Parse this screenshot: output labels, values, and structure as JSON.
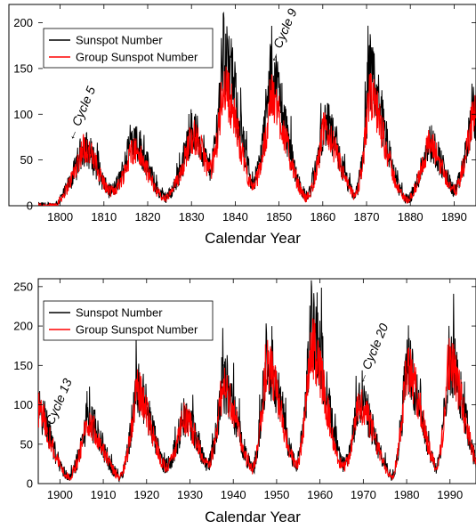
{
  "chart_data": [
    {
      "type": "line",
      "xlabel": "Calendar Year",
      "xlim": [
        1795,
        1895
      ],
      "ylim": [
        0,
        220
      ],
      "xticks": [
        1800,
        1810,
        1820,
        1830,
        1840,
        1850,
        1860,
        1870,
        1880,
        1890
      ],
      "yticks": [
        0,
        50,
        100,
        150,
        200
      ],
      "legend_position": "top-left",
      "colors": {
        "sunspot": "#000000",
        "group": "#ff0000"
      },
      "series": [
        {
          "name": "Sunspot Number",
          "color": "#000000"
        },
        {
          "name": "Group Sunspot Number",
          "color": "#ff0000"
        }
      ],
      "cycles": [
        {
          "year": 1805.2,
          "min": 1798.3,
          "max_year": 1805.2,
          "sunspot_peak": 82,
          "group_peak": 82
        },
        {
          "year": 1816.4,
          "min": 1810.6,
          "max_year": 1816.4,
          "sunspot_peak": 95,
          "group_peak": 80
        },
        {
          "year": 1829.9,
          "min": 1823.3,
          "max_year": 1829.9,
          "sunspot_peak": 105,
          "group_peak": 98
        },
        {
          "year": 1837.2,
          "min": 1833.9,
          "max_year": 1837.2,
          "sunspot_peak": 205,
          "group_peak": 160
        },
        {
          "year": 1848.1,
          "min": 1843.5,
          "max_year": 1848.1,
          "sunspot_peak": 180,
          "group_peak": 150
        },
        {
          "year": 1860.1,
          "min": 1856.0,
          "max_year": 1860.1,
          "sunspot_peak": 115,
          "group_peak": 105
        },
        {
          "year": 1870.6,
          "min": 1867.2,
          "max_year": 1870.6,
          "sunspot_peak": 175,
          "group_peak": 150
        },
        {
          "year": 1883.9,
          "min": 1878.9,
          "max_year": 1883.9,
          "sunspot_peak": 90,
          "group_peak": 85
        },
        {
          "year": 1894.1,
          "min": 1889.6,
          "max_year": 1894.1,
          "sunspot_peak": 130,
          "group_peak": 125
        }
      ],
      "annotations": [
        {
          "text": "← Cycle 5",
          "x": 1803,
          "y": 70
        },
        {
          "text": "← Cycle 9",
          "x": 1849,
          "y": 155
        }
      ]
    },
    {
      "type": "line",
      "xlabel": "Calendar Year",
      "xlim": [
        1895,
        1996
      ],
      "ylim": [
        0,
        260
      ],
      "xticks": [
        1900,
        1910,
        1920,
        1930,
        1940,
        1950,
        1960,
        1970,
        1980,
        1990
      ],
      "yticks": [
        0,
        50,
        100,
        150,
        200,
        250
      ],
      "legend_position": "top-left",
      "colors": {
        "sunspot": "#000000",
        "group": "#ff0000"
      },
      "series": [
        {
          "name": "Sunspot Number",
          "color": "#000000"
        },
        {
          "name": "Group Sunspot Number",
          "color": "#ff0000"
        }
      ],
      "cycles": [
        {
          "year": 1894.1,
          "min": 1889.6,
          "max_year": 1894.1,
          "sunspot_peak": 130,
          "group_peak": 125
        },
        {
          "year": 1906.2,
          "min": 1901.7,
          "max_year": 1906.2,
          "sunspot_peak": 105,
          "group_peak": 100
        },
        {
          "year": 1917.6,
          "min": 1913.6,
          "max_year": 1917.6,
          "sunspot_peak": 155,
          "group_peak": 150
        },
        {
          "year": 1928.4,
          "min": 1923.6,
          "max_year": 1928.4,
          "sunspot_peak": 110,
          "group_peak": 105
        },
        {
          "year": 1937.4,
          "min": 1933.8,
          "max_year": 1937.4,
          "sunspot_peak": 160,
          "group_peak": 155
        },
        {
          "year": 1947.5,
          "min": 1944.2,
          "max_year": 1947.5,
          "sunspot_peak": 200,
          "group_peak": 190
        },
        {
          "year": 1957.9,
          "min": 1954.3,
          "max_year": 1957.9,
          "sunspot_peak": 255,
          "group_peak": 220
        },
        {
          "year": 1968.9,
          "min": 1964.9,
          "max_year": 1968.9,
          "sunspot_peak": 135,
          "group_peak": 130
        },
        {
          "year": 1979.9,
          "min": 1976.5,
          "max_year": 1979.9,
          "sunspot_peak": 190,
          "group_peak": 185
        },
        {
          "year": 1989.6,
          "min": 1986.8,
          "max_year": 1989.6,
          "sunspot_peak": 200,
          "group_peak": 195
        }
      ],
      "annotations": [
        {
          "text": "← Cycle 13",
          "x": 1897,
          "y": 55
        },
        {
          "text": "← Cycle 20",
          "x": 1970,
          "y": 125
        }
      ]
    }
  ]
}
